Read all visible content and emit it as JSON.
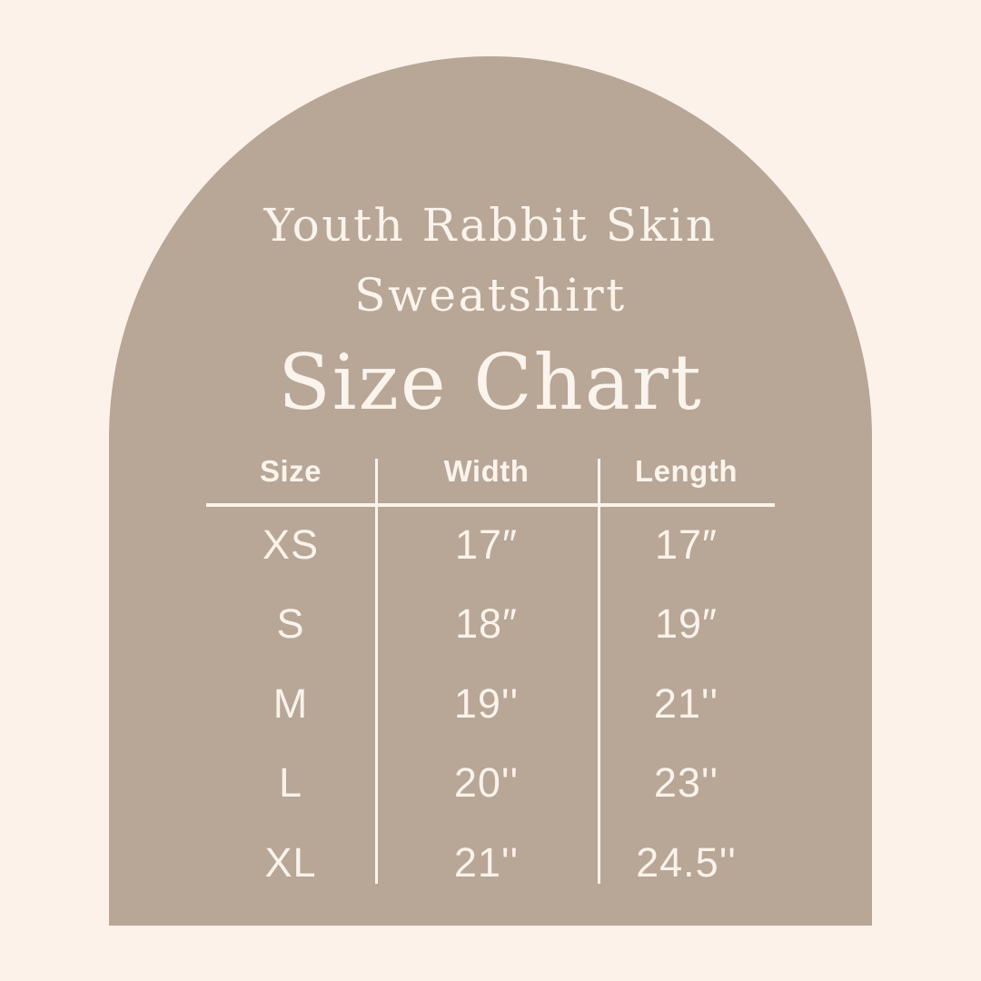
{
  "colors": {
    "background": "#FDF2EA",
    "arch": "#B8A696",
    "text": "#FBF4EC"
  },
  "title": {
    "line1": "Youth Rabbit Skin",
    "line2": "Sweatshirt",
    "subtitle": "Size Chart"
  },
  "chart_data": {
    "type": "table",
    "title": "Youth Rabbit Skin Sweatshirt Size Chart",
    "columns": [
      "Size",
      "Width",
      "Length"
    ],
    "rows": [
      [
        "XS",
        "17″",
        "17″"
      ],
      [
        "S",
        "18″",
        "19″"
      ],
      [
        "M",
        "19''",
        "21''"
      ],
      [
        "L",
        "20''",
        "23''"
      ],
      [
        "XL",
        "21''",
        "24.5''"
      ]
    ]
  }
}
